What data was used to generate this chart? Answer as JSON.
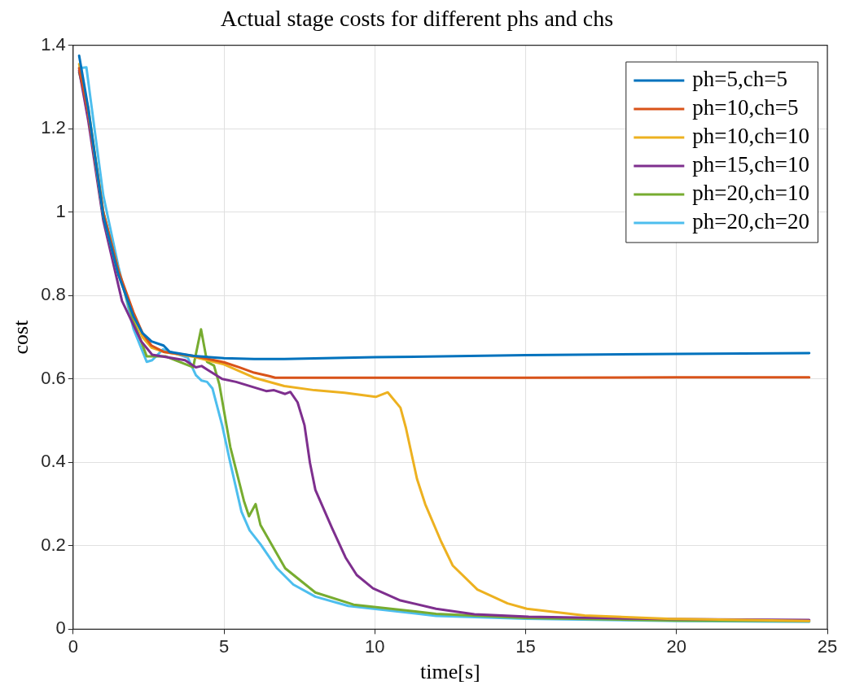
{
  "chart_data": {
    "type": "line",
    "title": "Actual stage costs for different phs and chs",
    "xlabel": "time[s]",
    "ylabel": "cost",
    "xlim": [
      0,
      25
    ],
    "xticks": [
      0,
      5,
      10,
      15,
      20,
      25
    ],
    "ylim": [
      0,
      1.4
    ],
    "yticks": [
      0,
      0.2,
      0.4,
      0.6,
      0.8,
      1,
      1.2,
      1.4
    ],
    "grid": true,
    "legend": "top right",
    "marker": "none",
    "line_style": "solid",
    "series": [
      {
        "name": "ph=5,ch=5",
        "color": "#0072bd",
        "x": [
          0.2,
          0.5,
          1,
          1.5,
          2,
          2.3,
          2.6,
          3,
          3.2,
          4,
          5,
          6,
          7,
          10,
          15,
          20,
          24.4
        ],
        "values": [
          1.375,
          1.25,
          0.99,
          0.85,
          0.75,
          0.71,
          0.69,
          0.68,
          0.665,
          0.655,
          0.65,
          0.648,
          0.648,
          0.652,
          0.657,
          0.66,
          0.662
        ]
      },
      {
        "name": "ph=10,ch=5",
        "color": "#d95319",
        "x": [
          0.2,
          0.5,
          1,
          1.5,
          2,
          2.3,
          2.6,
          3,
          4,
          5,
          5.5,
          6,
          6.5,
          6.7,
          10,
          15,
          20,
          24.4
        ],
        "values": [
          1.345,
          1.24,
          1.0,
          0.86,
          0.76,
          0.71,
          0.68,
          0.665,
          0.655,
          0.64,
          0.628,
          0.615,
          0.607,
          0.603,
          0.603,
          0.603,
          0.604,
          0.604
        ]
      },
      {
        "name": "ph=10,ch=10",
        "color": "#edb120",
        "x": [
          0.2,
          0.5,
          1,
          1.5,
          2,
          2.3,
          2.6,
          3,
          4,
          5,
          6,
          7,
          8,
          9,
          10.03,
          10.43,
          10.85,
          11.03,
          11.4,
          11.67,
          12.2,
          12.58,
          13.4,
          14.4,
          15.04,
          16.95,
          19.7,
          24.4
        ],
        "values": [
          1.355,
          1.24,
          0.99,
          0.85,
          0.75,
          0.7,
          0.675,
          0.665,
          0.653,
          0.635,
          0.603,
          0.583,
          0.573,
          0.567,
          0.557,
          0.568,
          0.531,
          0.483,
          0.36,
          0.3,
          0.21,
          0.153,
          0.095,
          0.062,
          0.049,
          0.033,
          0.025,
          0.02
        ]
      },
      {
        "name": "ph=15,ch=10",
        "color": "#7e2f8e",
        "x": [
          0.2,
          0.5,
          1,
          1.62,
          2.26,
          2.62,
          3.71,
          4.07,
          4.26,
          4.94,
          5.4,
          6.4,
          6.66,
          7.03,
          7.2,
          7.44,
          7.67,
          7.85,
          8.03,
          8.58,
          9.03,
          9.4,
          9.94,
          10.85,
          12.03,
          13.3,
          15.1,
          20,
          24.4
        ],
        "values": [
          1.34,
          1.22,
          0.98,
          0.787,
          0.69,
          0.658,
          0.645,
          0.628,
          0.631,
          0.6,
          0.593,
          0.571,
          0.573,
          0.564,
          0.569,
          0.544,
          0.489,
          0.399,
          0.334,
          0.243,
          0.172,
          0.13,
          0.098,
          0.069,
          0.049,
          0.036,
          0.03,
          0.024,
          0.022
        ]
      },
      {
        "name": "ph=20,ch=10",
        "color": "#77ac30",
        "x": [
          0.2,
          0.5,
          1,
          1.5,
          2,
          2.44,
          3.07,
          3.98,
          4.24,
          4.44,
          4.67,
          4.85,
          5.21,
          5.66,
          5.83,
          6.05,
          6.21,
          7.03,
          8.03,
          9.3,
          12.03,
          15,
          20,
          24.4
        ],
        "values": [
          1.335,
          1.25,
          1.0,
          0.86,
          0.74,
          0.654,
          0.654,
          0.628,
          0.719,
          0.641,
          0.632,
          0.586,
          0.437,
          0.308,
          0.271,
          0.3,
          0.25,
          0.146,
          0.088,
          0.059,
          0.037,
          0.027,
          0.021,
          0.02
        ]
      },
      {
        "name": "ph=20,ch=20",
        "color": "#4dbeee",
        "x": [
          0.2,
          0.44,
          1,
          1.5,
          2,
          2.44,
          2.62,
          2.98,
          3.8,
          4.07,
          4.26,
          4.44,
          4.62,
          4.94,
          5.21,
          5.58,
          5.85,
          6.21,
          6.76,
          7.3,
          8.03,
          9.12,
          12.03,
          15,
          20,
          24.4
        ],
        "values": [
          1.345,
          1.347,
          1.04,
          0.87,
          0.72,
          0.641,
          0.645,
          0.671,
          0.651,
          0.609,
          0.596,
          0.593,
          0.577,
          0.489,
          0.399,
          0.282,
          0.237,
          0.204,
          0.146,
          0.107,
          0.078,
          0.056,
          0.032,
          0.025,
          0.02,
          0.018
        ]
      }
    ]
  }
}
